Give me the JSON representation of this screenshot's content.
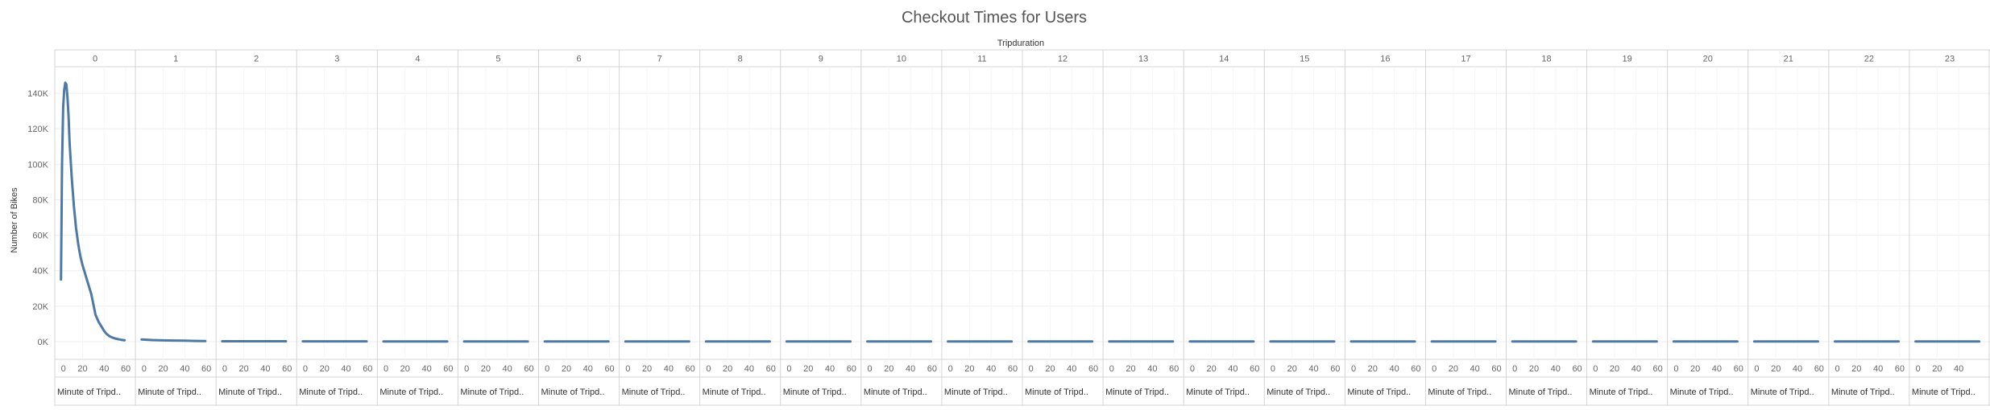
{
  "chart_data": {
    "type": "line",
    "title": "Checkout Times for Users",
    "column_header": "Tripduration",
    "ylabel": "Number of Bikes",
    "panel_xlabel": "Minute of Tripd..",
    "panels": [
      "0",
      "1",
      "2",
      "3",
      "4",
      "5",
      "6",
      "7",
      "8",
      "9",
      "10",
      "11",
      "12",
      "13",
      "14",
      "15",
      "16",
      "17",
      "18",
      "19",
      "20",
      "21",
      "22",
      "23"
    ],
    "ylim": [
      -10000,
      155000
    ],
    "yticks": [
      0,
      20000,
      40000,
      60000,
      80000,
      100000,
      120000,
      140000
    ],
    "ytick_labels": [
      "0K",
      "20K",
      "40K",
      "60K",
      "80K",
      "100K",
      "120K",
      "140K"
    ],
    "xlim": [
      -2,
      63
    ],
    "xticks": [
      0,
      20,
      40,
      60
    ],
    "xtick_labels": [
      "0",
      "20",
      "40",
      "60"
    ],
    "last_panel_xticks": [
      0,
      20,
      40
    ],
    "last_panel_xtick_labels": [
      "0",
      "20",
      "40"
    ],
    "line_color": "#4e79a7",
    "series": [
      {
        "panel": "0",
        "x": [
          0,
          1,
          2,
          3,
          4,
          5,
          6,
          7,
          8,
          10,
          12,
          14,
          16,
          18,
          20,
          22,
          24,
          26,
          28,
          30,
          32,
          35,
          38,
          40,
          42,
          45,
          48,
          50,
          53,
          56,
          59
        ],
        "y": [
          35000,
          100000,
          132000,
          142000,
          146000,
          145000,
          138000,
          127000,
          112000,
          92000,
          76000,
          64000,
          55000,
          48000,
          43000,
          39000,
          35000,
          31000,
          27000,
          21000,
          15000,
          11000,
          8000,
          6000,
          4500,
          3000,
          2200,
          1800,
          1400,
          1000,
          800
        ]
      },
      {
        "panel": "1",
        "x": [
          0,
          10,
          20,
          30,
          40,
          50,
          59
        ],
        "y": [
          1200,
          900,
          700,
          600,
          500,
          400,
          300
        ]
      },
      {
        "panel": "2",
        "x": [
          0,
          59
        ],
        "y": [
          200,
          200
        ]
      },
      {
        "panel": "3",
        "x": [
          0,
          59
        ],
        "y": [
          150,
          150
        ]
      },
      {
        "panel": "4",
        "x": [
          0,
          59
        ],
        "y": [
          120,
          120
        ]
      },
      {
        "panel": "5",
        "x": [
          0,
          59
        ],
        "y": [
          100,
          100
        ]
      },
      {
        "panel": "6",
        "x": [
          0,
          59
        ],
        "y": [
          100,
          100
        ]
      },
      {
        "panel": "7",
        "x": [
          0,
          59
        ],
        "y": [
          100,
          100
        ]
      },
      {
        "panel": "8",
        "x": [
          0,
          59
        ],
        "y": [
          100,
          100
        ]
      },
      {
        "panel": "9",
        "x": [
          0,
          59
        ],
        "y": [
          100,
          100
        ]
      },
      {
        "panel": "10",
        "x": [
          0,
          59
        ],
        "y": [
          100,
          100
        ]
      },
      {
        "panel": "11",
        "x": [
          0,
          59
        ],
        "y": [
          100,
          100
        ]
      },
      {
        "panel": "12",
        "x": [
          0,
          59
        ],
        "y": [
          100,
          100
        ]
      },
      {
        "panel": "13",
        "x": [
          0,
          59
        ],
        "y": [
          100,
          100
        ]
      },
      {
        "panel": "14",
        "x": [
          0,
          59
        ],
        "y": [
          100,
          100
        ]
      },
      {
        "panel": "15",
        "x": [
          0,
          59
        ],
        "y": [
          100,
          100
        ]
      },
      {
        "panel": "16",
        "x": [
          0,
          59
        ],
        "y": [
          100,
          100
        ]
      },
      {
        "panel": "17",
        "x": [
          0,
          59
        ],
        "y": [
          100,
          100
        ]
      },
      {
        "panel": "18",
        "x": [
          0,
          59
        ],
        "y": [
          100,
          100
        ]
      },
      {
        "panel": "19",
        "x": [
          0,
          59
        ],
        "y": [
          100,
          100
        ]
      },
      {
        "panel": "20",
        "x": [
          0,
          59
        ],
        "y": [
          100,
          100
        ]
      },
      {
        "panel": "21",
        "x": [
          0,
          59
        ],
        "y": [
          100,
          100
        ]
      },
      {
        "panel": "22",
        "x": [
          0,
          59
        ],
        "y": [
          100,
          100
        ]
      },
      {
        "panel": "23",
        "x": [
          0,
          59
        ],
        "y": [
          100,
          100
        ]
      }
    ]
  }
}
